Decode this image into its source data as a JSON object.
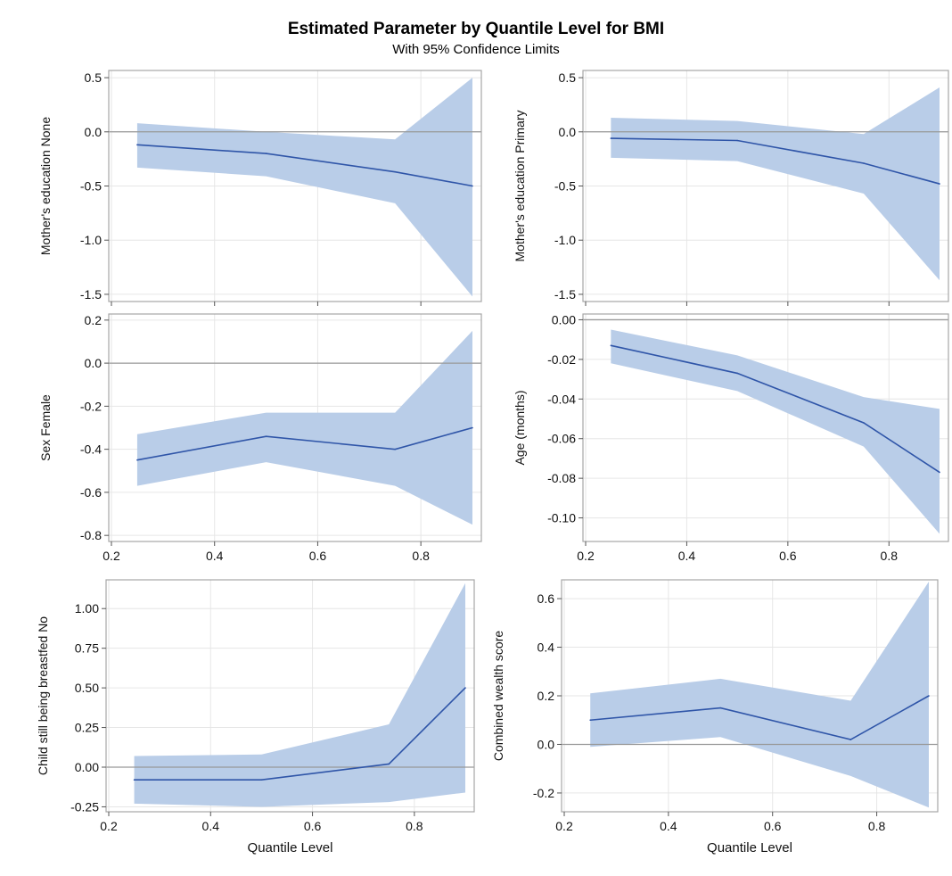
{
  "title": "Estimated Parameter by Quantile Level for BMI",
  "subtitle": "With 95% Confidence Limits",
  "colors": {
    "band": "#b9cde8",
    "line": "#2f55a8",
    "frame": "#a6a6a6",
    "grid": "#e6e6e6",
    "refline": "#999999"
  },
  "chart_data": [
    {
      "type": "line",
      "ylabel": "Mother's education None",
      "xlabel": "",
      "x": [
        0.25,
        0.5,
        0.75,
        0.9
      ],
      "estimate": [
        -0.12,
        -0.2,
        -0.37,
        -0.5
      ],
      "lower": [
        -0.33,
        -0.41,
        -0.66,
        -1.52
      ],
      "upper": [
        0.08,
        0.0,
        -0.07,
        0.5
      ],
      "xlim": [
        0.2,
        0.9
      ],
      "ylim": [
        -1.55,
        0.55
      ],
      "yticks": [
        -1.5,
        -1.0,
        -0.5,
        0.0,
        0.5
      ],
      "ytick_labels": [
        "-1.5",
        "-1.0",
        "-0.5",
        "0.0",
        "0.5"
      ],
      "xticks": [
        0.2,
        0.4,
        0.6,
        0.8
      ],
      "xtick_labels": [],
      "reference_y": 0
    },
    {
      "type": "line",
      "ylabel": "Mother's education Primary",
      "xlabel": "",
      "x": [
        0.25,
        0.5,
        0.75,
        0.9
      ],
      "estimate": [
        -0.06,
        -0.08,
        -0.29,
        -0.48
      ],
      "lower": [
        -0.24,
        -0.27,
        -0.57,
        -1.37
      ],
      "upper": [
        0.13,
        0.1,
        -0.02,
        0.41
      ],
      "xlim": [
        0.2,
        0.9
      ],
      "ylim": [
        -1.55,
        0.55
      ],
      "yticks": [
        -1.5,
        -1.0,
        -0.5,
        0.0,
        0.5
      ],
      "ytick_labels": [
        "-1.5",
        "-1.0",
        "-0.5",
        "0.0",
        "0.5"
      ],
      "xticks": [
        0.2,
        0.4,
        0.6,
        0.8
      ],
      "xtick_labels": [],
      "reference_y": 0
    },
    {
      "type": "line",
      "ylabel": "Sex Female",
      "xlabel": "",
      "x": [
        0.25,
        0.5,
        0.75,
        0.9
      ],
      "estimate": [
        -0.45,
        -0.34,
        -0.4,
        -0.3
      ],
      "lower": [
        -0.57,
        -0.46,
        -0.57,
        -0.75
      ],
      "upper": [
        -0.33,
        -0.23,
        -0.23,
        0.15
      ],
      "xlim": [
        0.2,
        0.9
      ],
      "ylim": [
        -0.82,
        0.22
      ],
      "yticks": [
        -0.8,
        -0.6,
        -0.4,
        -0.2,
        0.0,
        0.2
      ],
      "ytick_labels": [
        "-0.8",
        "-0.6",
        "-0.4",
        "-0.2",
        "0.0",
        "0.2"
      ],
      "xticks": [
        0.2,
        0.4,
        0.6,
        0.8
      ],
      "xtick_labels": [
        "0.2",
        "0.4",
        "0.6",
        "0.8"
      ],
      "reference_y": 0
    },
    {
      "type": "line",
      "ylabel": "Age (months)",
      "xlabel": "",
      "x": [
        0.25,
        0.5,
        0.75,
        0.9
      ],
      "estimate": [
        -0.013,
        -0.027,
        -0.052,
        -0.077
      ],
      "lower": [
        -0.022,
        -0.036,
        -0.064,
        -0.108
      ],
      "upper": [
        -0.005,
        -0.018,
        -0.039,
        -0.045
      ],
      "xlim": [
        0.2,
        0.9
      ],
      "ylim": [
        -0.111,
        0.002
      ],
      "yticks": [
        -0.1,
        -0.08,
        -0.06,
        -0.04,
        -0.02,
        0.0
      ],
      "ytick_labels": [
        "-0.10",
        "-0.08",
        "-0.06",
        "-0.04",
        "-0.02",
        "0.00"
      ],
      "xticks": [
        0.2,
        0.4,
        0.6,
        0.8
      ],
      "xtick_labels": [
        "0.2",
        "0.4",
        "0.6",
        "0.8"
      ],
      "reference_y": 0
    },
    {
      "type": "line",
      "ylabel": "Child still being breastfed No",
      "xlabel": "Quantile Level",
      "x": [
        0.25,
        0.5,
        0.75,
        0.9
      ],
      "estimate": [
        -0.08,
        -0.08,
        0.02,
        0.5
      ],
      "lower": [
        -0.23,
        -0.25,
        -0.22,
        -0.16
      ],
      "upper": [
        0.07,
        0.08,
        0.27,
        1.16
      ],
      "xlim": [
        0.2,
        0.9
      ],
      "ylim": [
        -0.27,
        1.17
      ],
      "yticks": [
        -0.25,
        0.0,
        0.25,
        0.5,
        0.75,
        1.0
      ],
      "ytick_labels": [
        "-0.25",
        "0.00",
        "0.25",
        "0.50",
        "0.75",
        "1.00"
      ],
      "xticks": [
        0.2,
        0.4,
        0.6,
        0.8
      ],
      "xtick_labels": [
        "0.2",
        "0.4",
        "0.6",
        "0.8"
      ],
      "reference_y": 0
    },
    {
      "type": "line",
      "ylabel": "Combined wealth score",
      "xlabel": "Quantile Level",
      "x": [
        0.25,
        0.5,
        0.75,
        0.9
      ],
      "estimate": [
        0.1,
        0.15,
        0.02,
        0.2
      ],
      "lower": [
        -0.01,
        0.03,
        -0.13,
        -0.26
      ],
      "upper": [
        0.21,
        0.27,
        0.18,
        0.67
      ],
      "xlim": [
        0.2,
        0.9
      ],
      "ylim": [
        -0.27,
        0.67
      ],
      "yticks": [
        -0.2,
        0.0,
        0.2,
        0.4,
        0.6
      ],
      "ytick_labels": [
        "-0.2",
        "0.0",
        "0.2",
        "0.4",
        "0.6"
      ],
      "xticks": [
        0.2,
        0.4,
        0.6,
        0.8
      ],
      "xtick_labels": [
        "0.2",
        "0.4",
        "0.6",
        "0.8"
      ],
      "reference_y": 0
    }
  ]
}
